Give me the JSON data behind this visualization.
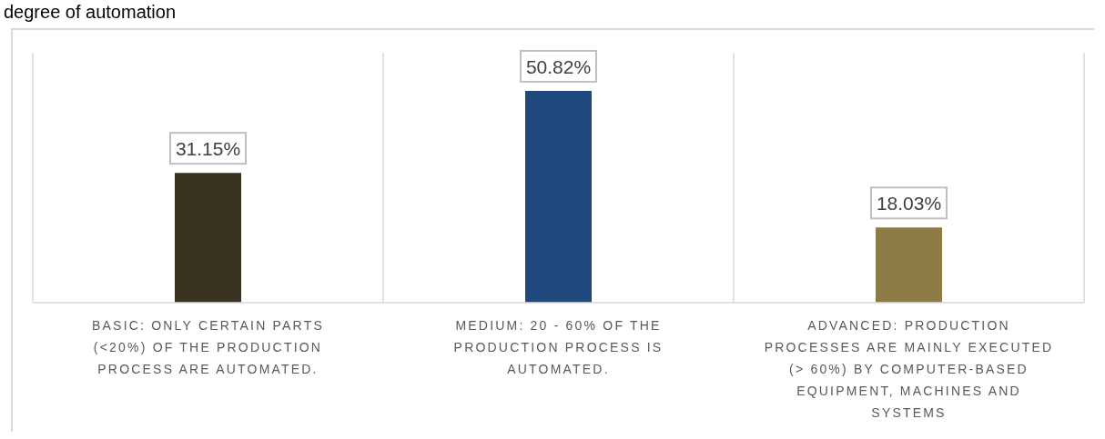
{
  "chart_data": {
    "type": "bar",
    "title": "degree of automation",
    "categories": [
      "BASIC: ONLY CERTAIN PARTS (<20%) OF THE PRODUCTION PROCESS ARE AUTOMATED.",
      "MEDIUM: 20 - 60% OF THE PRODUCTION PROCESS IS AUTOMATED.",
      "ADVANCED: PRODUCTION PROCESSES ARE MAINLY EXECUTED (> 60%) BY COMPUTER-BASED EQUIPMENT, MACHINES AND SYSTEMS"
    ],
    "values": [
      31.15,
      50.82,
      18.03
    ],
    "colors": [
      "#3a3322",
      "#1f497d",
      "#8c7b45"
    ],
    "value_labels": [
      "31.15%",
      "50.82%",
      "18.03%"
    ],
    "grid": "x"
  }
}
